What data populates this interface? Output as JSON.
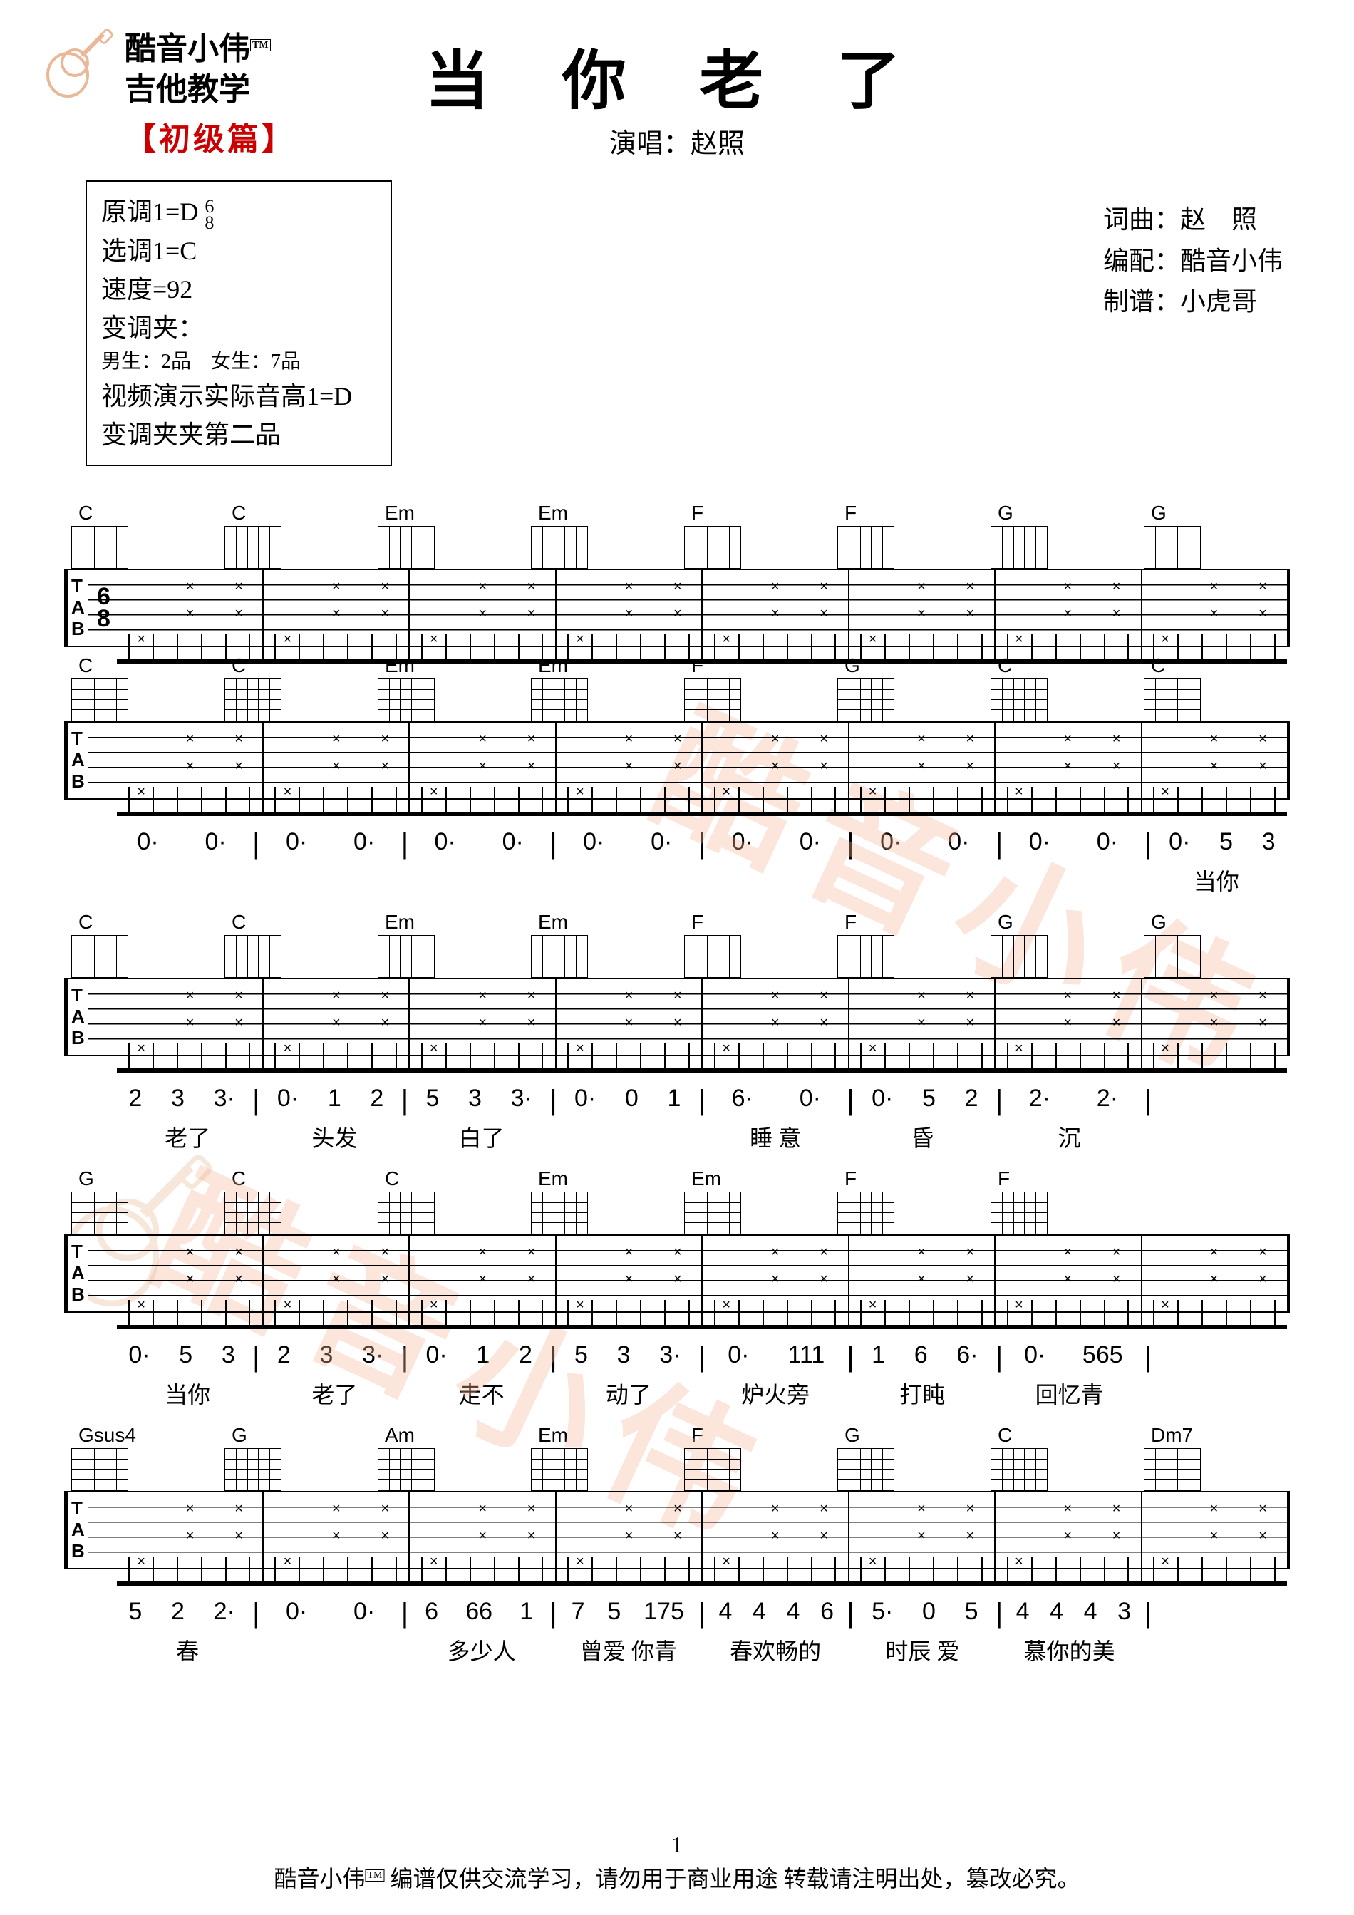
{
  "brand": {
    "line1": "酷音小伟",
    "line2": "吉他教学",
    "tm": "TM"
  },
  "level": "【初级篇】",
  "title": "当 你 老 了",
  "performer": "演唱：赵照",
  "info": {
    "l1": "原调1=D",
    "ts_num": "6",
    "ts_den": "8",
    "l2": "选调1=C",
    "l3": "速度=92",
    "l4": "变调夹：",
    "l5": "男生：2品　女生：7品",
    "l6": "视频演示实际音高1=D",
    "l7": "变调夹夹第二品"
  },
  "credits": {
    "c1a": "词曲：",
    "c1b": "赵",
    "c1c": "照",
    "c2": "编配：酷音小伟",
    "c3": "制谱：小虎哥"
  },
  "systems": [
    {
      "chords": [
        "C",
        "C",
        "Em",
        "Em",
        "F",
        "F",
        "G",
        "G"
      ],
      "showClef": true,
      "showTS": true
    },
    {
      "chords": [
        "C",
        "C",
        "Em",
        "Em",
        "F",
        "G",
        "C",
        "C"
      ],
      "showClef": true
    },
    {
      "chords": [
        "C",
        "C",
        "Em",
        "Em",
        "F",
        "F",
        "G",
        "G"
      ],
      "showClef": true
    },
    {
      "chords": [
        "G",
        "C",
        "C",
        "Em",
        "Em",
        "F",
        "F",
        ""
      ],
      "showClef": true
    },
    {
      "chords": [
        "Gsus4",
        "G",
        "Am",
        "Em",
        "F",
        "G",
        "C",
        "Dm7"
      ],
      "showClef": true
    }
  ],
  "jianpu_rows": [
    {
      "prefix": "",
      "bars": [
        "0· 0·",
        "0· 0·",
        "0· 0·",
        "0· 0·",
        "0· 0·",
        "0· 0·",
        "0· 0·",
        "0· 5 3"
      ],
      "lyrics": [
        "",
        "",
        "",
        "",
        "",
        "",
        "",
        "当你"
      ]
    },
    {
      "bars": [
        "2 3 3·",
        "0· 1 2",
        "5 3 3·",
        "0· 0 1",
        "6· 0·",
        "0· 5 2",
        "2· 2·",
        ""
      ],
      "lyrics": [
        "老了",
        "头发",
        "白了",
        "",
        "睡 意",
        "昏",
        "沉",
        ""
      ]
    },
    {
      "bars": [
        "0· 5 3",
        "2 3 3·",
        "0· 1 2",
        "5 3 3·",
        "0· 111",
        "1 6 6·",
        "0· 565",
        ""
      ],
      "lyrics": [
        "当你",
        "老了",
        "走不",
        "动了",
        "炉火旁",
        "打盹",
        "回忆青",
        ""
      ]
    },
    {
      "bars": [
        "5 2 2·",
        "0· 0·",
        "6 66 1",
        "7 5 175",
        "4 4 4 6",
        "5· 0 5",
        "4 4 4 3",
        ""
      ],
      "lyrics": [
        "春",
        "",
        "多少人",
        "曾爱 你青",
        "春欢畅的",
        "时辰 爱",
        "慕你的美",
        ""
      ]
    }
  ],
  "page": "1",
  "footer": "酷音小伟 编谱仅供交流学习，请勿用于商业用途 转载请注明出处，篡改必究。",
  "wm_text": "酷音小伟",
  "colors": {
    "red": "#cc0000",
    "orange": "#eab896"
  }
}
